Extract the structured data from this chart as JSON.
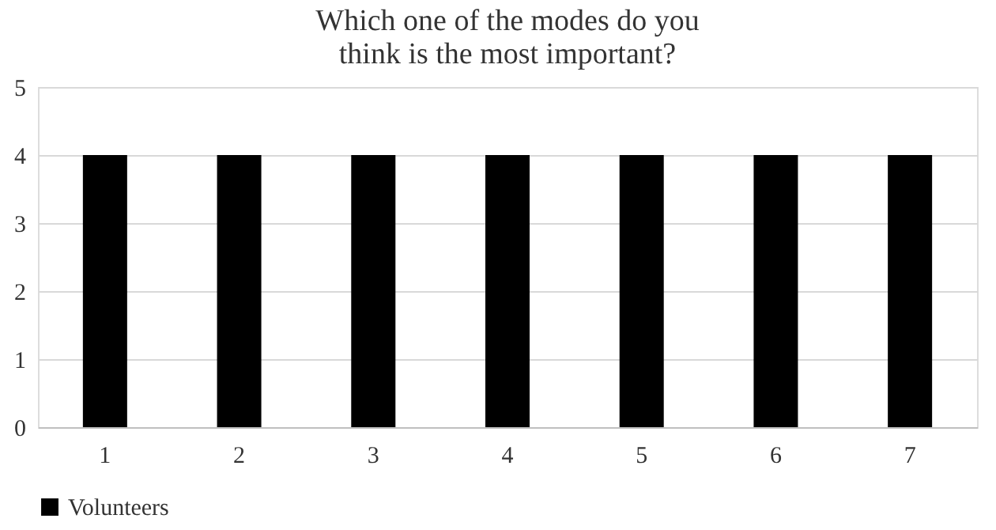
{
  "chart_data": {
    "type": "bar",
    "title": "Which one of the modes do you think is the most important?",
    "categories": [
      "1",
      "2",
      "3",
      "4",
      "5",
      "6",
      "7"
    ],
    "series": [
      {
        "name": "Volunteers",
        "color": "#000000",
        "values": [
          4,
          4,
          4,
          4,
          4,
          4,
          4
        ]
      }
    ],
    "ylim": [
      0,
      5
    ],
    "yticks": [
      0,
      1,
      2,
      3,
      4,
      5
    ],
    "grid": "y",
    "legend": "bottom"
  }
}
